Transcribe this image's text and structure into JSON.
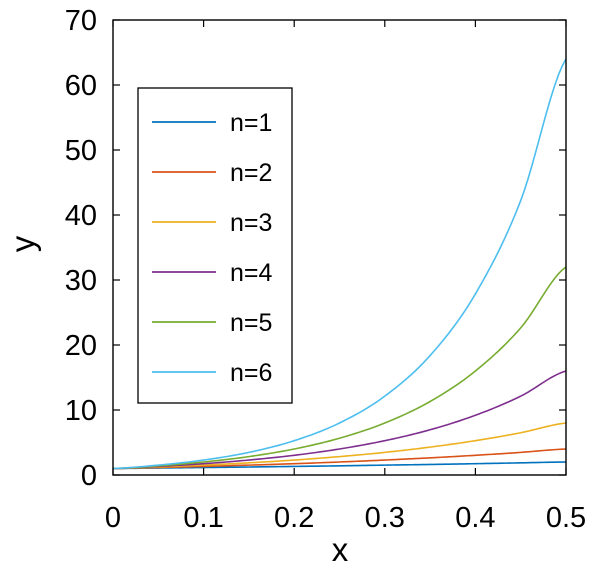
{
  "chart_data": {
    "type": "line",
    "title": "",
    "xlabel": "x",
    "ylabel": "y",
    "xlim": [
      0,
      0.5
    ],
    "ylim": [
      0,
      70
    ],
    "xticks": [
      0,
      0.1,
      0.2,
      0.3,
      0.4,
      0.5
    ],
    "xtick_labels": [
      "0",
      "0.1",
      "0.2",
      "0.3",
      "0.4",
      "0.5"
    ],
    "yticks": [
      0,
      10,
      20,
      30,
      40,
      50,
      60,
      70
    ],
    "ytick_labels": [
      "0",
      "10",
      "20",
      "30",
      "40",
      "50",
      "60",
      "70"
    ],
    "grid": false,
    "legend_position": "upper-left",
    "x": [
      0,
      0.05,
      0.1,
      0.15,
      0.2,
      0.25,
      0.3,
      0.35,
      0.4,
      0.45,
      0.5
    ],
    "series": [
      {
        "name": "n=1",
        "color": "#0072BD",
        "values": [
          1.0,
          1.07,
          1.15,
          1.23,
          1.32,
          1.41,
          1.52,
          1.62,
          1.74,
          1.87,
          2.0
        ]
      },
      {
        "name": "n=2",
        "color": "#D95319",
        "values": [
          1.0,
          1.15,
          1.32,
          1.52,
          1.74,
          2.0,
          2.3,
          2.64,
          3.03,
          3.48,
          4.0
        ]
      },
      {
        "name": "n=3",
        "color": "#EDB120",
        "values": [
          1.0,
          1.23,
          1.52,
          1.87,
          2.3,
          2.83,
          3.48,
          4.29,
          5.28,
          6.5,
          8.0
        ]
      },
      {
        "name": "n=4",
        "color": "#7E2F8E",
        "values": [
          1.0,
          1.32,
          1.74,
          2.3,
          3.03,
          4.0,
          5.28,
          6.96,
          9.19,
          12.13,
          16.0
        ]
      },
      {
        "name": "n=5",
        "color": "#77AC30",
        "values": [
          1.0,
          1.41,
          2.0,
          2.83,
          4.0,
          5.66,
          8.0,
          11.31,
          16.0,
          22.63,
          32.0
        ]
      },
      {
        "name": "n=6",
        "color": "#4DBEEE",
        "values": [
          1.0,
          1.52,
          2.3,
          3.48,
          5.28,
          8.0,
          12.13,
          18.38,
          27.86,
          42.22,
          64.0
        ]
      }
    ]
  }
}
